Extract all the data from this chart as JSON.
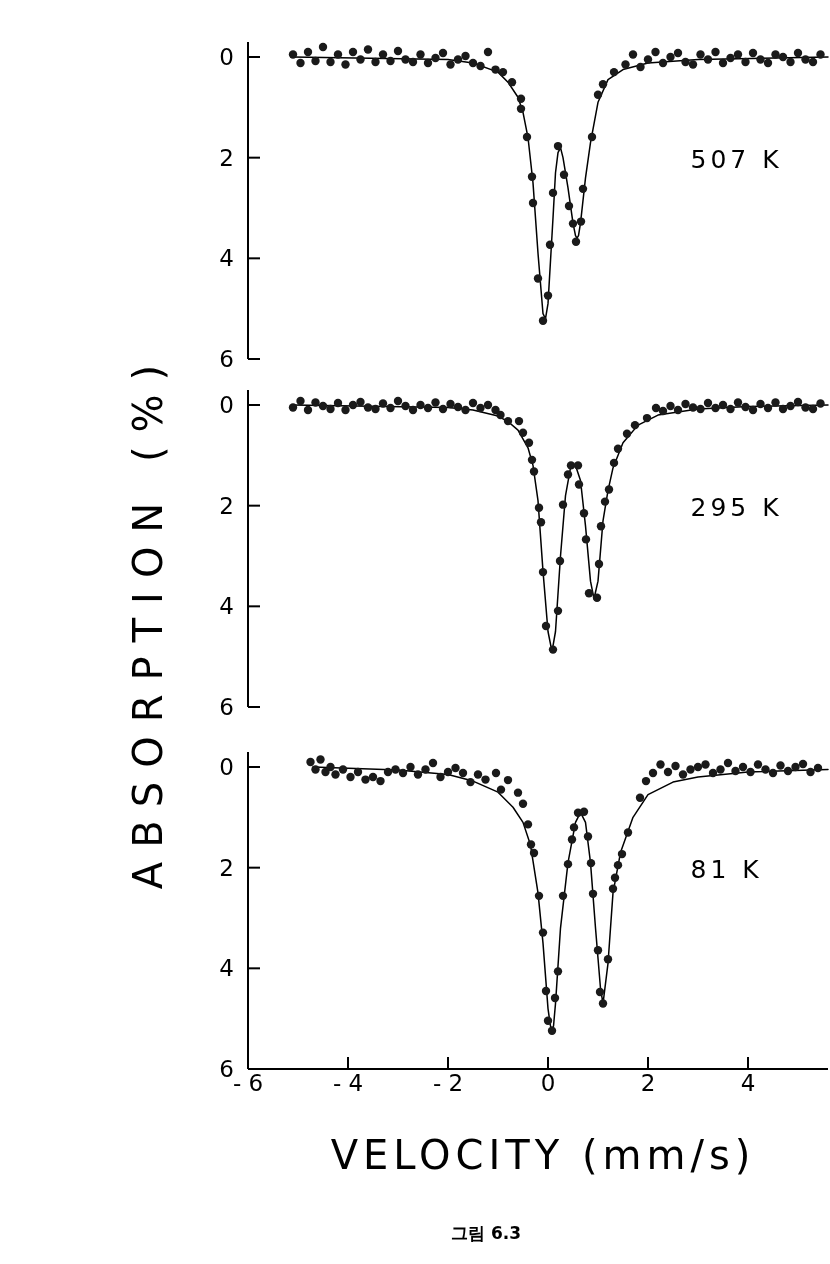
{
  "chart_data": [
    {
      "type": "scatter",
      "annotations": [
        "507 K"
      ],
      "xlim": [
        -6,
        5.6
      ],
      "ylim": [
        6,
        -0.3
      ],
      "yticks": [
        0,
        2,
        4,
        6
      ],
      "tick_labels": "y",
      "series": [
        {
          "type": "line",
          "color": "#000000",
          "marker": "none",
          "x": [
            -5.1,
            -2,
            -1.5,
            -1,
            -0.8,
            -0.6,
            -0.5,
            -0.4,
            -0.3,
            -0.2,
            -0.1,
            -0.05,
            0,
            0.1,
            0.15,
            0.2,
            0.25,
            0.3,
            0.4,
            0.5,
            0.55,
            0.58,
            0.61,
            0.65,
            0.75,
            0.85,
            1.0,
            1.2,
            1.5,
            2,
            3,
            5.6
          ],
          "values": [
            0,
            0.05,
            0.12,
            0.3,
            0.5,
            0.8,
            1.1,
            1.6,
            2.5,
            3.9,
            5.1,
            5.2,
            4.9,
            3.2,
            2.3,
            1.9,
            1.8,
            2.0,
            2.6,
            3.3,
            3.55,
            3.6,
            3.55,
            3.3,
            2.4,
            1.7,
            0.9,
            0.45,
            0.25,
            0.12,
            0.05,
            0
          ]
        },
        {
          "type": "scatter",
          "color": "#1a1a1a",
          "marker": "circle",
          "x": [
            -5.1,
            -4.95,
            -4.8,
            -4.65,
            -4.5,
            -4.35,
            -4.2,
            -4.05,
            -3.9,
            -3.75,
            -3.6,
            -3.45,
            -3.3,
            -3.15,
            -3.0,
            -2.85,
            -2.7,
            -2.55,
            -2.4,
            -2.25,
            -2.1,
            -1.95,
            -1.8,
            -1.65,
            -1.5,
            -1.35,
            -1.2,
            -1.05,
            -0.9,
            -0.72,
            -0.54,
            -0.54,
            -0.42,
            -0.32,
            -0.3,
            -0.2,
            -0.1,
            0,
            0.04,
            0.1,
            0.2,
            0.32,
            0.42,
            0.5,
            0.56,
            0.66,
            0.7,
            0.88,
            1.0,
            1.1,
            1.32,
            1.55,
            1.7,
            1.85,
            2.0,
            2.15,
            2.3,
            2.45,
            2.6,
            2.75,
            2.9,
            3.05,
            3.2,
            3.35,
            3.5,
            3.65,
            3.8,
            3.95,
            4.1,
            4.25,
            4.4,
            4.55,
            4.7,
            4.85,
            5.0,
            5.15,
            5.3,
            5.45
          ],
          "values": [
            -0.05,
            0.12,
            -0.1,
            0.08,
            -0.2,
            0.1,
            -0.05,
            0.15,
            -0.1,
            0.05,
            -0.15,
            0.1,
            -0.05,
            0.08,
            -0.12,
            0.05,
            0.1,
            -0.05,
            0.12,
            0.02,
            -0.08,
            0.15,
            0.05,
            -0.02,
            0.12,
            0.18,
            -0.1,
            0.25,
            0.3,
            0.5,
            0.83,
            1.03,
            1.59,
            2.38,
            2.9,
            4.4,
            5.24,
            4.74,
            3.73,
            2.7,
            1.77,
            2.34,
            2.96,
            3.31,
            3.67,
            3.27,
            2.62,
            1.59,
            0.75,
            0.54,
            0.3,
            0.15,
            -0.05,
            0.2,
            0.05,
            -0.1,
            0.12,
            0.0,
            -0.08,
            0.1,
            0.15,
            -0.05,
            0.05,
            -0.1,
            0.12,
            0.02,
            -0.05,
            0.1,
            -0.08,
            0.05,
            0.12,
            -0.05,
            0.0,
            0.1,
            -0.08,
            0.05,
            0.1,
            -0.05
          ]
        }
      ]
    },
    {
      "type": "scatter",
      "ylabel": "ABSORPTION (%)",
      "annotations": [
        "295 K"
      ],
      "xlim": [
        -6,
        5.6
      ],
      "ylim": [
        6,
        -0.3
      ],
      "yticks": [
        0,
        2,
        4,
        6
      ],
      "tick_labels": "y",
      "series": [
        {
          "type": "line",
          "color": "#000000",
          "marker": "none",
          "x": [
            -5.1,
            -2,
            -1.5,
            -1,
            -0.8,
            -0.6,
            -0.4,
            -0.3,
            -0.2,
            -0.1,
            0,
            0.08,
            0.15,
            0.25,
            0.35,
            0.45,
            0.55,
            0.65,
            0.75,
            0.85,
            0.92,
            1.0,
            1.1,
            1.2,
            1.3,
            1.5,
            1.8,
            2.2,
            3,
            4,
            5.6
          ],
          "values": [
            0,
            0.05,
            0.1,
            0.22,
            0.33,
            0.5,
            0.85,
            1.2,
            1.9,
            3.3,
            4.5,
            4.9,
            4.5,
            3.0,
            1.8,
            1.25,
            1.2,
            1.5,
            2.4,
            3.5,
            3.85,
            3.5,
            2.3,
            1.7,
            1.25,
            0.75,
            0.4,
            0.2,
            0.08,
            0.03,
            0
          ]
        },
        {
          "type": "scatter",
          "color": "#1a1a1a",
          "marker": "circle",
          "x": [
            -5.1,
            -4.95,
            -4.8,
            -4.65,
            -4.5,
            -4.35,
            -4.2,
            -4.05,
            -3.9,
            -3.75,
            -3.6,
            -3.45,
            -3.3,
            -3.15,
            -3.0,
            -2.85,
            -2.7,
            -2.55,
            -2.4,
            -2.25,
            -2.1,
            -1.95,
            -1.8,
            -1.65,
            -1.5,
            -1.35,
            -1.2,
            -1.05,
            -0.95,
            -0.8,
            -0.58,
            -0.5,
            -0.38,
            -0.32,
            -0.28,
            -0.18,
            -0.14,
            -0.1,
            -0.04,
            0.1,
            0.2,
            0.24,
            0.3,
            0.4,
            0.46,
            0.6,
            0.62,
            0.72,
            0.76,
            0.82,
            0.98,
            1.02,
            1.06,
            1.14,
            1.22,
            1.32,
            1.4,
            1.58,
            1.74,
            1.98,
            2.16,
            2.3,
            2.45,
            2.6,
            2.75,
            2.9,
            3.05,
            3.2,
            3.35,
            3.5,
            3.65,
            3.8,
            3.95,
            4.1,
            4.25,
            4.4,
            4.55,
            4.7,
            4.85,
            5.0,
            5.15,
            5.3,
            5.45
          ],
          "values": [
            0.05,
            -0.08,
            0.1,
            -0.05,
            0.02,
            0.08,
            -0.04,
            0.1,
            0.0,
            -0.06,
            0.05,
            0.08,
            -0.03,
            0.06,
            -0.08,
            0.02,
            0.1,
            0.0,
            0.06,
            -0.05,
            0.08,
            -0.02,
            0.04,
            0.1,
            -0.04,
            0.06,
            0.0,
            0.1,
            0.2,
            0.32,
            0.32,
            0.55,
            0.75,
            1.09,
            1.32,
            2.04,
            2.33,
            3.32,
            4.39,
            4.86,
            4.09,
            3.1,
            1.98,
            1.38,
            1.2,
            1.2,
            1.58,
            2.15,
            2.67,
            3.74,
            3.83,
            3.16,
            2.41,
            1.92,
            1.68,
            1.15,
            0.87,
            0.57,
            0.4,
            0.26,
            0.06,
            0.12,
            0.02,
            0.1,
            -0.02,
            0.05,
            0.08,
            -0.04,
            0.06,
            0.0,
            0.08,
            -0.05,
            0.04,
            0.1,
            -0.02,
            0.06,
            -0.05,
            0.08,
            0.02,
            -0.06,
            0.05,
            0.08,
            -0.03
          ]
        }
      ]
    },
    {
      "type": "scatter",
      "xlabel": "VELOCITY (mm/s)",
      "annotations": [
        "81  K",
        "그림 6.3"
      ],
      "xlim": [
        -6,
        5.6
      ],
      "xticks": [
        -6,
        -4,
        -2,
        0,
        2,
        4
      ],
      "ylim": [
        6,
        -0.3
      ],
      "yticks": [
        0,
        2,
        4,
        6
      ],
      "series": [
        {
          "type": "line",
          "color": "#000000",
          "marker": "none",
          "x": [
            -4.7,
            -3,
            -2,
            -1.5,
            -1,
            -0.7,
            -0.5,
            -0.35,
            -0.2,
            -0.1,
            0,
            0.05,
            0.08,
            0.11,
            0.15,
            0.25,
            0.4,
            0.55,
            0.65,
            0.75,
            0.85,
            0.95,
            1.05,
            1.1,
            1.2,
            1.3,
            1.45,
            1.7,
            2,
            2.5,
            3,
            4,
            5.6
          ],
          "values": [
            0,
            0.06,
            0.15,
            0.28,
            0.5,
            0.8,
            1.1,
            1.55,
            2.5,
            3.5,
            4.8,
            5.15,
            5.2,
            5.15,
            4.7,
            3.2,
            1.9,
            1.1,
            0.9,
            1.1,
            1.9,
            3.2,
            4.4,
            4.7,
            3.9,
            2.5,
            1.7,
            1.0,
            0.55,
            0.3,
            0.2,
            0.1,
            0.05
          ]
        },
        {
          "type": "scatter",
          "color": "#1a1a1a",
          "marker": "circle",
          "x": [
            -4.75,
            -4.65,
            -4.55,
            -4.45,
            -4.35,
            -4.25,
            -4.1,
            -3.95,
            -3.8,
            -3.65,
            -3.5,
            -3.35,
            -3.2,
            -3.05,
            -2.9,
            -2.75,
            -2.6,
            -2.45,
            -2.3,
            -2.15,
            -2.0,
            -1.85,
            -1.7,
            -1.55,
            -1.4,
            -1.25,
            -1.04,
            -0.94,
            -0.8,
            -0.6,
            -0.5,
            -0.4,
            -0.34,
            -0.28,
            -0.18,
            -0.1,
            -0.04,
            0,
            0.08,
            0.14,
            0.2,
            0.3,
            0.4,
            0.48,
            0.52,
            0.6,
            0.72,
            0.8,
            0.86,
            0.9,
            1.0,
            1.04,
            1.1,
            1.2,
            1.3,
            1.34,
            1.4,
            1.48,
            1.6,
            1.84,
            1.96,
            2.1,
            2.25,
            2.4,
            2.55,
            2.7,
            2.85,
            3.0,
            3.15,
            3.3,
            3.45,
            3.6,
            3.75,
            3.9,
            4.05,
            4.2,
            4.35,
            4.5,
            4.65,
            4.8,
            4.95,
            5.1,
            5.25,
            5.4
          ],
          "values": [
            -0.1,
            0.05,
            -0.15,
            0.1,
            0.0,
            0.15,
            0.05,
            0.2,
            0.1,
            0.25,
            0.2,
            0.28,
            0.1,
            0.05,
            0.12,
            0.0,
            0.15,
            0.05,
            -0.08,
            0.2,
            0.1,
            0.02,
            0.12,
            0.3,
            0.15,
            0.25,
            0.12,
            0.45,
            0.26,
            0.51,
            0.73,
            1.14,
            1.54,
            1.71,
            2.56,
            3.29,
            4.45,
            5.04,
            5.24,
            4.59,
            4.06,
            2.56,
            1.93,
            1.44,
            1.2,
            0.91,
            0.89,
            1.38,
            1.91,
            2.52,
            3.64,
            4.47,
            4.7,
            3.82,
            2.42,
            2.2,
            1.95,
            1.73,
            1.3,
            0.61,
            0.28,
            0.12,
            -0.05,
            0.1,
            -0.02,
            0.15,
            0.05,
            0.0,
            -0.05,
            0.12,
            0.05,
            -0.08,
            0.08,
            0.0,
            0.1,
            -0.05,
            0.05,
            0.12,
            -0.03,
            0.08,
            0.0,
            -0.06,
            0.1,
            0.02
          ]
        }
      ]
    }
  ]
}
